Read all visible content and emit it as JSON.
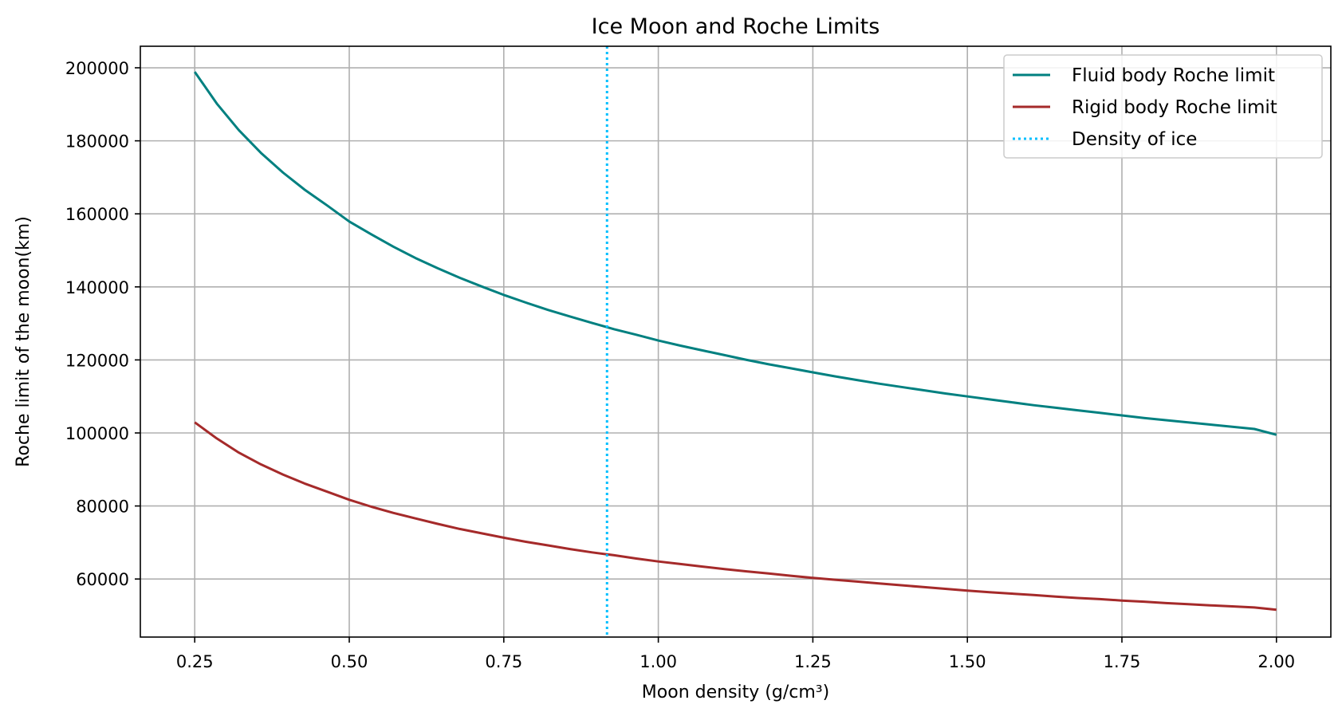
{
  "chart_data": {
    "type": "line",
    "title": "Ice Moon and Roche Limits",
    "xlabel": "Moon density (g/cm³)",
    "ylabel": "Roche limit of the moon(km)",
    "xlim": [
      0.162,
      2.088
    ],
    "ylim": [
      44100,
      205900
    ],
    "xticks": [
      0.25,
      0.5,
      0.75,
      1.0,
      1.25,
      1.5,
      1.75,
      2.0
    ],
    "xtick_labels": [
      "0.25",
      "0.50",
      "0.75",
      "1.00",
      "1.25",
      "1.50",
      "1.75",
      "2.00"
    ],
    "yticks": [
      60000,
      80000,
      100000,
      120000,
      140000,
      160000,
      180000,
      200000
    ],
    "ytick_labels": [
      "60000",
      "80000",
      "100000",
      "120000",
      "140000",
      "160000",
      "180000",
      "200000"
    ],
    "grid": true,
    "legend_position": "top-right",
    "x": [
      0.25,
      0.2857,
      0.3214,
      0.3571,
      0.3929,
      0.4286,
      0.4643,
      0.5,
      0.5357,
      0.5714,
      0.6071,
      0.6429,
      0.6786,
      0.7143,
      0.75,
      0.7857,
      0.8214,
      0.8571,
      0.8929,
      0.9286,
      0.9643,
      1.0,
      1.0357,
      1.0714,
      1.1071,
      1.1429,
      1.1786,
      1.2143,
      1.25,
      1.2857,
      1.3214,
      1.3571,
      1.3929,
      1.4286,
      1.4643,
      1.5,
      1.5357,
      1.5714,
      1.6071,
      1.6429,
      1.6786,
      1.7143,
      1.75,
      1.7857,
      1.8214,
      1.8571,
      1.8929,
      1.9286,
      1.9643,
      2.0
    ],
    "series": [
      {
        "name": "Fluid body Roche limit",
        "color": "#008080",
        "style": "solid",
        "values": [
          198900,
          190200,
          182900,
          176700,
          171300,
          166500,
          162300,
          157900,
          154400,
          151000,
          147900,
          145100,
          142500,
          140100,
          137800,
          135700,
          133700,
          131900,
          130100,
          128400,
          126900,
          125300,
          123900,
          122600,
          121300,
          120000,
          118800,
          117700,
          116600,
          115500,
          114500,
          113500,
          112600,
          111700,
          110800,
          110000,
          109200,
          108400,
          107600,
          106900,
          106200,
          105500,
          104800,
          104100,
          103500,
          102900,
          102300,
          101700,
          101100,
          99500
        ]
      },
      {
        "name": "Rigid body Roche limit",
        "color": "#a52a2a",
        "style": "solid",
        "values": [
          102900,
          98500,
          94600,
          91400,
          88600,
          86100,
          83900,
          81700,
          79800,
          78100,
          76600,
          75100,
          73700,
          72500,
          71300,
          70200,
          69200,
          68200,
          67300,
          66500,
          65600,
          64800,
          64100,
          63400,
          62700,
          62100,
          61500,
          60900,
          60300,
          59800,
          59300,
          58800,
          58300,
          57800,
          57300,
          56800,
          56400,
          56000,
          55600,
          55200,
          54800,
          54500,
          54100,
          53800,
          53400,
          53100,
          52800,
          52500,
          52200,
          51600
        ]
      }
    ],
    "vlines": [
      {
        "name": "Density of ice",
        "x": 0.917,
        "color": "#00bfff",
        "style": "dotted"
      }
    ]
  }
}
